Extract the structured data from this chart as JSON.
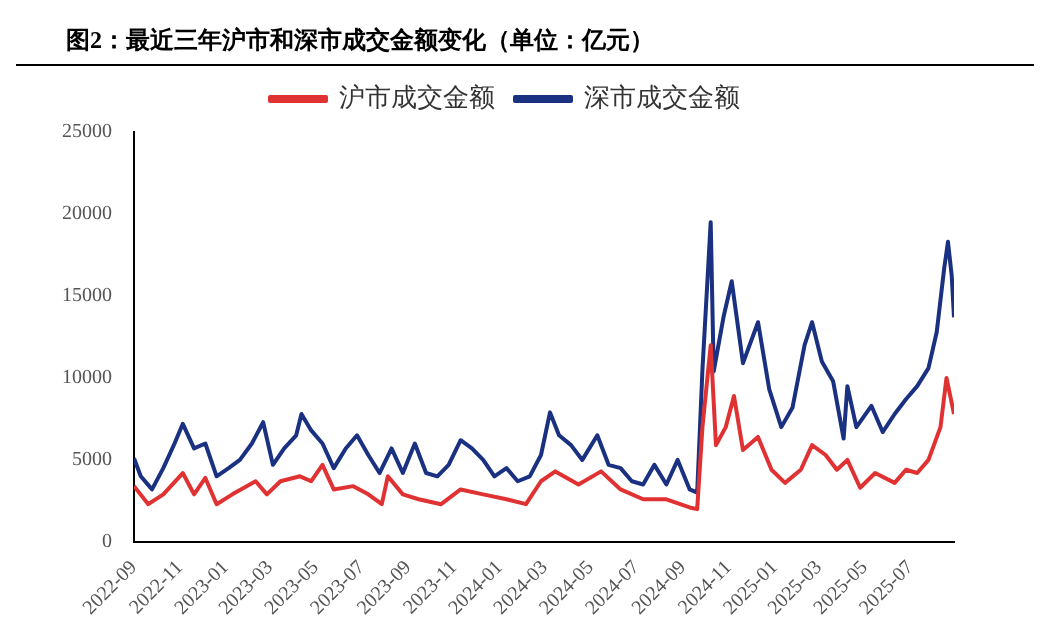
{
  "chart_data": {
    "type": "line",
    "title": "图2：最近三年沪市和深市成交金额变化（单位：亿元）",
    "legend": "top",
    "grid": false,
    "marker": "none",
    "line_style": "solid",
    "xlim": [
      "2022-09-01",
      "2025-08-28"
    ],
    "xticks": [
      {
        "value": "2022-09-01",
        "label": "2022-09"
      },
      {
        "value": "2022-11-01",
        "label": "2022-11"
      },
      {
        "value": "2023-01-01",
        "label": "2023-01"
      },
      {
        "value": "2023-03-01",
        "label": "2023-03"
      },
      {
        "value": "2023-05-01",
        "label": "2023-05"
      },
      {
        "value": "2023-07-01",
        "label": "2023-07"
      },
      {
        "value": "2023-09-01",
        "label": "2023-09"
      },
      {
        "value": "2023-11-01",
        "label": "2023-11"
      },
      {
        "value": "2024-01-01",
        "label": "2024-01"
      },
      {
        "value": "2024-03-01",
        "label": "2024-03"
      },
      {
        "value": "2024-05-01",
        "label": "2024-05"
      },
      {
        "value": "2024-07-01",
        "label": "2024-07"
      },
      {
        "value": "2024-09-01",
        "label": "2024-09"
      },
      {
        "value": "2024-11-01",
        "label": "2024-11"
      },
      {
        "value": "2025-01-01",
        "label": "2025-01"
      },
      {
        "value": "2025-03-01",
        "label": "2025-03"
      },
      {
        "value": "2025-05-01",
        "label": "2025-05"
      },
      {
        "value": "2025-07-01",
        "label": "2025-07"
      }
    ],
    "ylim": [
      0,
      25000
    ],
    "yticks": [
      0,
      5000,
      10000,
      15000,
      20000,
      25000
    ],
    "series": [
      {
        "name": "沪市成交金额",
        "color": "#e03232",
        "x": [
          "2022-09-01",
          "2022-09-20",
          "2022-10-10",
          "2022-11-05",
          "2022-11-20",
          "2022-12-05",
          "2022-12-20",
          "2023-01-10",
          "2023-02-10",
          "2023-02-25",
          "2023-03-15",
          "2023-04-10",
          "2023-04-25",
          "2023-05-10",
          "2023-05-25",
          "2023-06-20",
          "2023-07-10",
          "2023-07-28",
          "2023-08-05",
          "2023-08-25",
          "2023-09-15",
          "2023-10-15",
          "2023-11-10",
          "2023-12-10",
          "2024-01-10",
          "2024-02-05",
          "2024-02-25",
          "2024-03-15",
          "2024-04-15",
          "2024-05-15",
          "2024-06-10",
          "2024-07-10",
          "2024-08-10",
          "2024-09-10",
          "2024-09-20",
          "2024-09-27",
          "2024-10-08",
          "2024-10-15",
          "2024-10-28",
          "2024-11-08",
          "2024-11-20",
          "2024-12-10",
          "2024-12-28",
          "2025-01-15",
          "2025-02-05",
          "2025-02-20",
          "2025-03-10",
          "2025-03-25",
          "2025-04-08",
          "2025-04-25",
          "2025-05-15",
          "2025-06-10",
          "2025-06-25",
          "2025-07-10",
          "2025-07-25",
          "2025-08-10",
          "2025-08-18",
          "2025-08-28"
        ],
        "values": [
          3400,
          2300,
          2900,
          4200,
          2900,
          3900,
          2300,
          2900,
          3700,
          2900,
          3700,
          4000,
          3700,
          4700,
          3200,
          3400,
          2900,
          2300,
          4000,
          2900,
          2600,
          2300,
          3200,
          2900,
          2600,
          2300,
          3700,
          4300,
          3500,
          4300,
          3200,
          2600,
          2600,
          2100,
          2000,
          7000,
          12000,
          5900,
          7000,
          8900,
          5600,
          6400,
          4400,
          3600,
          4400,
          5900,
          5300,
          4400,
          5000,
          3300,
          4200,
          3600,
          4400,
          4200,
          5000,
          7000,
          10000,
          7800
        ]
      },
      {
        "name": "深市成交金额",
        "color": "#1a3080",
        "x": [
          "2022-09-01",
          "2022-09-10",
          "2022-09-25",
          "2022-10-10",
          "2022-10-25",
          "2022-11-05",
          "2022-11-20",
          "2022-12-05",
          "2022-12-20",
          "2023-01-05",
          "2023-01-20",
          "2023-02-05",
          "2023-02-20",
          "2023-03-05",
          "2023-03-20",
          "2023-04-05",
          "2023-04-12",
          "2023-04-25",
          "2023-05-10",
          "2023-05-25",
          "2023-06-10",
          "2023-06-25",
          "2023-07-10",
          "2023-07-25",
          "2023-08-10",
          "2023-08-25",
          "2023-09-10",
          "2023-09-25",
          "2023-10-10",
          "2023-10-25",
          "2023-11-10",
          "2023-11-25",
          "2023-12-10",
          "2023-12-25",
          "2024-01-10",
          "2024-01-25",
          "2024-02-10",
          "2024-02-25",
          "2024-03-08",
          "2024-03-20",
          "2024-04-05",
          "2024-04-20",
          "2024-05-10",
          "2024-05-25",
          "2024-06-10",
          "2024-06-25",
          "2024-07-10",
          "2024-07-25",
          "2024-08-10",
          "2024-08-25",
          "2024-09-10",
          "2024-09-20",
          "2024-09-27",
          "2024-10-08",
          "2024-10-12",
          "2024-10-25",
          "2024-11-05",
          "2024-11-20",
          "2024-12-10",
          "2024-12-25",
          "2025-01-10",
          "2025-01-25",
          "2025-02-10",
          "2025-02-20",
          "2025-03-05",
          "2025-03-20",
          "2025-04-03",
          "2025-04-08",
          "2025-04-20",
          "2025-05-10",
          "2025-05-25",
          "2025-06-10",
          "2025-06-25",
          "2025-07-10",
          "2025-07-25",
          "2025-08-05",
          "2025-08-15",
          "2025-08-20",
          "2025-08-25",
          "2025-08-28"
        ],
        "values": [
          5100,
          4000,
          3200,
          4500,
          6000,
          7200,
          5700,
          6000,
          4000,
          4500,
          5000,
          6000,
          7300,
          4700,
          5700,
          6500,
          7800,
          6800,
          6000,
          4500,
          5700,
          6500,
          5300,
          4200,
          5700,
          4200,
          6000,
          4200,
          4000,
          4700,
          6200,
          5700,
          5000,
          4000,
          4500,
          3700,
          4000,
          5300,
          7900,
          6500,
          5900,
          5000,
          6500,
          4700,
          4500,
          3700,
          3500,
          4700,
          3500,
          5000,
          3200,
          3000,
          10500,
          19500,
          10400,
          13700,
          15900,
          10900,
          13400,
          9300,
          7000,
          8200,
          12000,
          13400,
          11000,
          9800,
          6300,
          9500,
          7000,
          8300,
          6700,
          7800,
          8700,
          9500,
          10600,
          12800,
          16700,
          18300,
          16200,
          13700
        ]
      }
    ]
  }
}
